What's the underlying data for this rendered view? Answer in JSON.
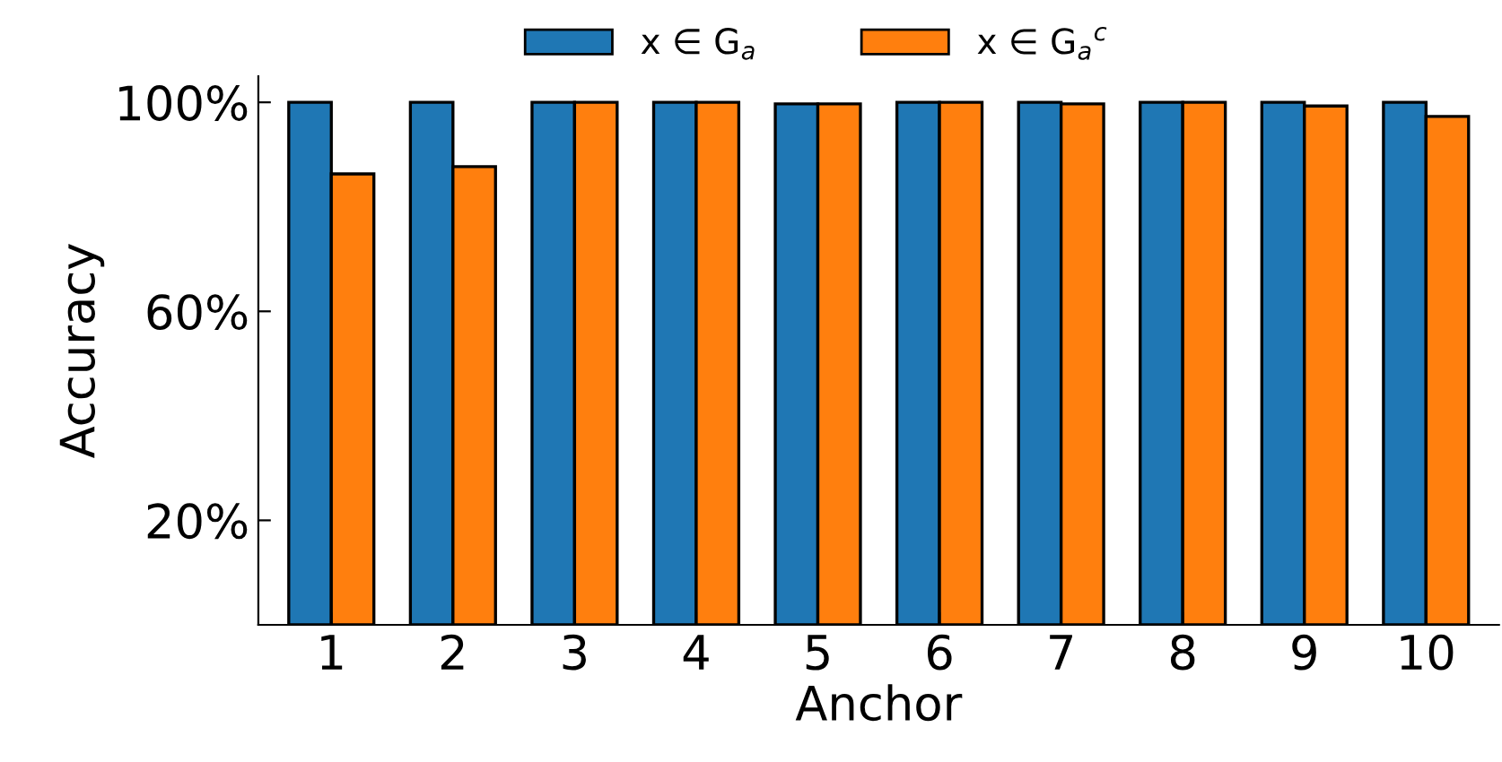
{
  "chart_data": {
    "type": "bar",
    "xlabel": "Anchor",
    "ylabel": "Accuracy",
    "categories": [
      "1",
      "2",
      "3",
      "4",
      "5",
      "6",
      "7",
      "8",
      "9",
      "10"
    ],
    "series": [
      {
        "name": "x ∈ G$_{a}$",
        "color": "#1f77b4",
        "values": [
          100,
          100,
          100,
          100,
          99.7,
          100,
          100,
          100,
          100,
          100
        ]
      },
      {
        "name": "x ∈ G$_{a}$$^{c}$",
        "color": "#ff7f0e",
        "values": [
          86.3,
          87.7,
          100,
          100,
          99.7,
          100,
          99.7,
          100,
          99.3,
          97.3
        ]
      }
    ],
    "ylim": [
      0,
      105
    ],
    "yticks": [
      {
        "value": 20,
        "label": "20%"
      },
      {
        "value": 60,
        "label": "60%"
      },
      {
        "value": 100,
        "label": "100%"
      }
    ],
    "grid": false,
    "legend": "top"
  }
}
